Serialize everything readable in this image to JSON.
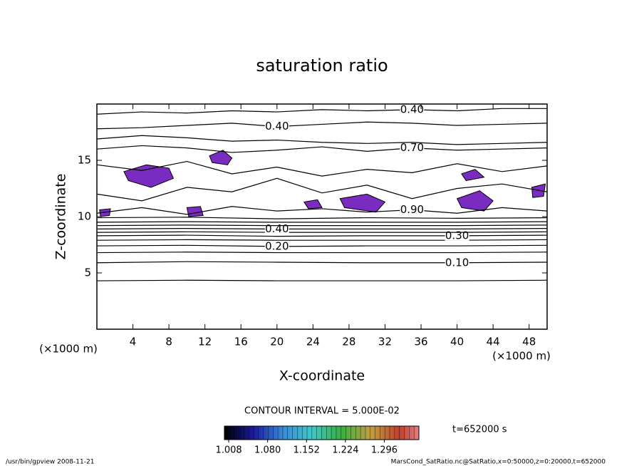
{
  "chart_data": {
    "type": "contour",
    "title": "saturation ratio",
    "xlabel": "X-coordinate",
    "ylabel": "Z-coordinate",
    "xunit": "(×1000 m)",
    "yunit": "(×1000 m)",
    "xlim": [
      0,
      50
    ],
    "ylim": [
      0,
      20
    ],
    "xticks": [
      4,
      8,
      12,
      16,
      20,
      24,
      28,
      32,
      36,
      40,
      44,
      48
    ],
    "yticks": [
      5,
      10,
      15
    ],
    "contour_interval": "CONTOUR INTERVAL = 5.000E-02",
    "time_label": "t=652000 s",
    "footer_left": "/usr/bin/gpview   2008-11-21",
    "footer_right": "MarsCond_SatRatio.nc@SatRatio,x=0:50000,z=0:20000,t=652000",
    "contours": [
      {
        "level": 0.05,
        "x": [
          0,
          10,
          20,
          30,
          40,
          50
        ],
        "z": [
          4.3,
          4.35,
          4.3,
          4.3,
          4.3,
          4.35
        ]
      },
      {
        "level": 0.1,
        "label": "0.10",
        "x": [
          0,
          10,
          20,
          30,
          40,
          50
        ],
        "z": [
          5.9,
          6.0,
          5.95,
          5.9,
          5.9,
          5.95
        ]
      },
      {
        "level": 0.15,
        "x": [
          0,
          10,
          20,
          30,
          40,
          50
        ],
        "z": [
          6.8,
          6.85,
          6.8,
          6.8,
          6.8,
          6.85
        ]
      },
      {
        "level": 0.2,
        "label": "0.20",
        "x": [
          0,
          10,
          20,
          30,
          40,
          50
        ],
        "z": [
          7.4,
          7.45,
          7.35,
          7.4,
          7.4,
          7.45
        ]
      },
      {
        "level": 0.25,
        "x": [
          0,
          10,
          20,
          30,
          40,
          50
        ],
        "z": [
          7.9,
          7.95,
          7.9,
          7.9,
          7.9,
          7.95
        ]
      },
      {
        "level": 0.3,
        "label": "0.30",
        "x": [
          0,
          10,
          20,
          30,
          40,
          50
        ],
        "z": [
          8.3,
          8.35,
          8.25,
          8.3,
          8.3,
          8.35
        ]
      },
      {
        "level": 0.35,
        "x": [
          0,
          10,
          20,
          30,
          40,
          50
        ],
        "z": [
          8.6,
          8.65,
          8.6,
          8.6,
          8.6,
          8.65
        ]
      },
      {
        "level": 0.4,
        "label": "0.40",
        "x": [
          0,
          10,
          20,
          30,
          40,
          50
        ],
        "z": [
          8.9,
          8.95,
          8.9,
          8.9,
          8.9,
          8.95
        ]
      },
      {
        "level": 0.5,
        "x": [
          0,
          10,
          20,
          30,
          40,
          50
        ],
        "z": [
          9.2,
          9.25,
          9.2,
          9.2,
          9.2,
          9.25
        ]
      },
      {
        "level": 0.6,
        "x": [
          0,
          10,
          20,
          30,
          40,
          50
        ],
        "z": [
          9.5,
          9.55,
          9.5,
          9.5,
          9.5,
          9.55
        ]
      },
      {
        "level": 0.8,
        "x": [
          0,
          10,
          20,
          30,
          40,
          50
        ],
        "z": [
          9.9,
          9.95,
          9.8,
          9.9,
          9.85,
          9.9
        ]
      },
      {
        "level": 0.9,
        "label": "0.90",
        "x": [
          0,
          5,
          10,
          15,
          20,
          25,
          30,
          35,
          40,
          45,
          50
        ],
        "z": [
          10.3,
          10.8,
          10.2,
          10.9,
          10.5,
          10.7,
          10.4,
          10.6,
          10.3,
          10.8,
          10.5
        ]
      },
      {
        "level": 0.9,
        "x": [
          0,
          5,
          10,
          15,
          20,
          25,
          30,
          35,
          40,
          45,
          50
        ],
        "z": [
          12.0,
          11.4,
          12.6,
          12.2,
          13.4,
          12.1,
          12.8,
          11.6,
          12.5,
          12.9,
          12.2
        ]
      },
      {
        "level": 0.9,
        "x": [
          0,
          5,
          10,
          15,
          20,
          25,
          30,
          35,
          40,
          45,
          50
        ],
        "z": [
          14.6,
          14.1,
          14.9,
          13.8,
          14.4,
          13.6,
          14.2,
          13.9,
          14.7,
          14.0,
          14.5
        ]
      },
      {
        "level": 0.7,
        "label": "0.70",
        "x": [
          0,
          5,
          10,
          15,
          20,
          25,
          30,
          35,
          40,
          45,
          50
        ],
        "z": [
          16.0,
          16.3,
          16.1,
          15.7,
          15.9,
          16.2,
          15.8,
          16.1,
          15.9,
          16.0,
          16.1
        ]
      },
      {
        "level": 0.6,
        "x": [
          0,
          5,
          10,
          15,
          20,
          25,
          30,
          35,
          40,
          45,
          50
        ],
        "z": [
          16.9,
          17.2,
          17.0,
          16.7,
          16.8,
          16.6,
          16.5,
          16.6,
          16.4,
          16.5,
          16.6
        ]
      },
      {
        "level": 0.4,
        "label": "0.40",
        "x": [
          0,
          5,
          10,
          15,
          20,
          25,
          30,
          35,
          40,
          45,
          50
        ],
        "z": [
          17.8,
          17.9,
          18.1,
          18.3,
          18.0,
          18.2,
          18.4,
          18.3,
          18.1,
          18.2,
          18.3
        ]
      },
      {
        "level": 0.4,
        "label": "0.40",
        "x": [
          0,
          5,
          10,
          15,
          20,
          25,
          30,
          35,
          40,
          45,
          50
        ],
        "z": [
          19.1,
          19.3,
          19.2,
          19.4,
          19.3,
          19.5,
          19.4,
          19.5,
          19.4,
          19.6,
          19.6
        ]
      }
    ],
    "regions": [
      {
        "x": [
          3.0,
          5.5,
          8.0,
          8.5,
          6.0,
          3.5
        ],
        "z": [
          14.0,
          14.6,
          14.3,
          13.4,
          12.6,
          13.2
        ]
      },
      {
        "x": [
          12.5,
          14.0,
          15.0,
          14.5,
          12.8
        ],
        "z": [
          15.4,
          15.9,
          15.2,
          14.6,
          14.8
        ]
      },
      {
        "x": [
          27.0,
          30.0,
          32.0,
          31.0,
          27.5
        ],
        "z": [
          11.6,
          12.0,
          11.3,
          10.4,
          10.8
        ]
      },
      {
        "x": [
          23.0,
          24.5,
          25.0,
          23.5
        ],
        "z": [
          11.3,
          11.5,
          10.8,
          10.7
        ]
      },
      {
        "x": [
          40.0,
          42.5,
          44.0,
          43.0,
          40.5
        ],
        "z": [
          11.6,
          12.3,
          11.4,
          10.5,
          10.8
        ]
      },
      {
        "x": [
          40.5,
          42.0,
          43.0,
          41.0
        ],
        "z": [
          13.8,
          14.2,
          13.5,
          13.2
        ]
      },
      {
        "x": [
          48.3,
          49.8,
          49.6,
          48.4
        ],
        "z": [
          12.6,
          12.9,
          11.8,
          11.7
        ]
      },
      {
        "x": [
          10.0,
          11.5,
          11.8,
          10.2
        ],
        "z": [
          10.8,
          10.9,
          10.1,
          10.0
        ]
      },
      {
        "x": [
          0.3,
          1.5,
          1.4,
          0.4
        ],
        "z": [
          10.6,
          10.7,
          10.1,
          10.0
        ]
      }
    ],
    "region_color": "#7b2cc0",
    "colorbar": {
      "clim": [
        1.0,
        1.36
      ],
      "ticks": [
        1.008,
        1.08,
        1.152,
        1.224,
        1.296
      ],
      "value_labels": [
        "1.008",
        "1.080",
        "1.152",
        "1.224",
        "1.296"
      ]
    }
  }
}
